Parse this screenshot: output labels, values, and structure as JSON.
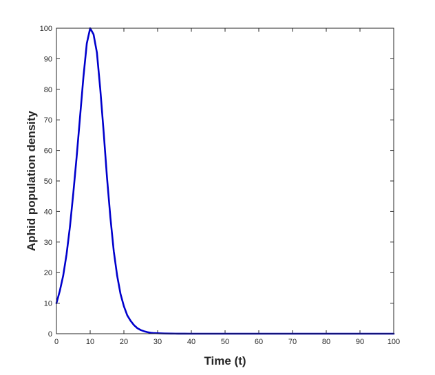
{
  "chart_data": {
    "type": "line",
    "title": "",
    "xlabel": "Time (t)",
    "ylabel": "Aphid population density",
    "xlim": [
      0,
      100
    ],
    "ylim": [
      0,
      100
    ],
    "xticks": [
      0,
      10,
      20,
      30,
      40,
      50,
      60,
      70,
      80,
      90,
      100
    ],
    "yticks": [
      0,
      10,
      20,
      30,
      40,
      50,
      60,
      70,
      80,
      90,
      100
    ],
    "grid": false,
    "series": [
      {
        "color": "#0000cc",
        "x": [
          0,
          1,
          2,
          3,
          4,
          5,
          6,
          7,
          8,
          9,
          10,
          11,
          12,
          13,
          14,
          15,
          16,
          17,
          18,
          19,
          20,
          21,
          22,
          23,
          24,
          25,
          26,
          27,
          28,
          29,
          30,
          32,
          34,
          36,
          38,
          40,
          45,
          50,
          60,
          70,
          80,
          90,
          100
        ],
        "y": [
          10,
          14,
          19,
          26,
          35,
          46,
          58,
          71,
          84,
          95,
          100,
          98,
          92,
          80,
          66,
          51,
          38,
          27,
          19,
          13,
          9,
          6,
          4.2,
          2.8,
          1.8,
          1.2,
          0.8,
          0.5,
          0.3,
          0.2,
          0.15,
          0.08,
          0.04,
          0.02,
          0.01,
          0,
          0,
          0,
          0,
          0,
          0,
          0,
          0
        ]
      }
    ]
  }
}
